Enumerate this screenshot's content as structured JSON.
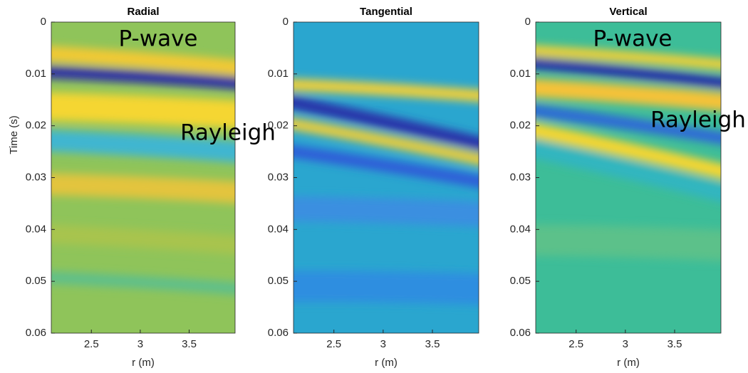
{
  "chart_data": [
    {
      "type": "heatmap",
      "title": "Radial",
      "xlabel": "r (m)",
      "ylabel": "Time (s)",
      "xlim": [
        2.09,
        3.97
      ],
      "ylim": [
        0,
        0.06
      ],
      "xticks": [
        2.5,
        3,
        3.5
      ],
      "yticks": [
        0,
        0.01,
        0.02,
        0.03,
        0.04,
        0.05,
        0.06
      ],
      "annotations": [
        "P-wave",
        "Rayleigh"
      ]
    },
    {
      "type": "heatmap",
      "title": "Tangential",
      "xlabel": "r (m)",
      "xlim": [
        2.09,
        3.97
      ],
      "ylim": [
        0,
        0.06
      ],
      "xticks": [
        2.5,
        3,
        3.5
      ],
      "yticks": [
        0,
        0.01,
        0.02,
        0.03,
        0.04,
        0.05,
        0.06
      ],
      "annotations": []
    },
    {
      "type": "heatmap",
      "title": "Vertical",
      "xlabel": "r (m)",
      "xlim": [
        2.09,
        3.97
      ],
      "ylim": [
        0,
        0.06
      ],
      "xticks": [
        2.5,
        3,
        3.5
      ],
      "yticks": [
        0,
        0.01,
        0.02,
        0.03,
        0.04,
        0.05,
        0.06
      ],
      "annotations": [
        "P-wave",
        "Rayleigh"
      ]
    }
  ]
}
